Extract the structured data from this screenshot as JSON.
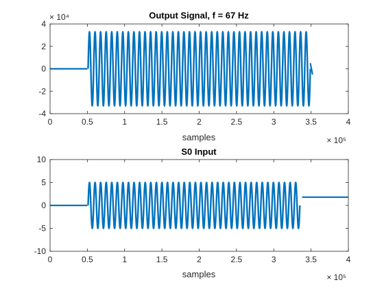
{
  "chart_data": [
    {
      "type": "line",
      "title": "Output Signal, f = 67 Hz",
      "xlabel": "samples",
      "ylabel": "",
      "xlim": [
        0,
        400000
      ],
      "ylim": [
        -40000,
        40000
      ],
      "x_ticks": [
        0,
        0.5,
        1,
        1.5,
        2,
        2.5,
        3,
        3.5,
        4
      ],
      "y_ticks": [
        4,
        2,
        0,
        -2,
        -4
      ],
      "x_exponent": "× 10⁵",
      "y_exponent": "× 10⁴",
      "grid": false,
      "line_color": "#0072BD",
      "segments": [
        {
          "name": "baseline",
          "x": [
            0,
            50000
          ],
          "y": [
            0,
            0
          ]
        },
        {
          "name": "oscillation",
          "x_start": 51000,
          "x_end": 349000,
          "cycles": 40,
          "amplitude": 33000
        },
        {
          "name": "tail",
          "x": [
            349000,
            352000
          ],
          "y": [
            5000,
            -5000
          ]
        }
      ]
    },
    {
      "type": "line",
      "title": "S0 Input",
      "xlabel": "samples",
      "ylabel": "",
      "xlim": [
        0,
        400000
      ],
      "ylim": [
        -10,
        10
      ],
      "x_ticks": [
        0,
        0.5,
        1,
        1.5,
        2,
        2.5,
        3,
        3.5,
        4
      ],
      "y_ticks": [
        10,
        5,
        0,
        -5,
        -10
      ],
      "x_exponent": "× 10⁵",
      "grid": false,
      "line_color": "#0072BD",
      "segments": [
        {
          "name": "baseline",
          "x": [
            0,
            50000
          ],
          "y": [
            0,
            0
          ]
        },
        {
          "name": "oscillation",
          "x_start": 51000,
          "x_end": 335000,
          "cycles": 38,
          "amplitude": 5
        },
        {
          "name": "dc-offset",
          "x": [
            338000,
            400000
          ],
          "y": [
            1.8,
            1.8
          ]
        }
      ]
    }
  ]
}
